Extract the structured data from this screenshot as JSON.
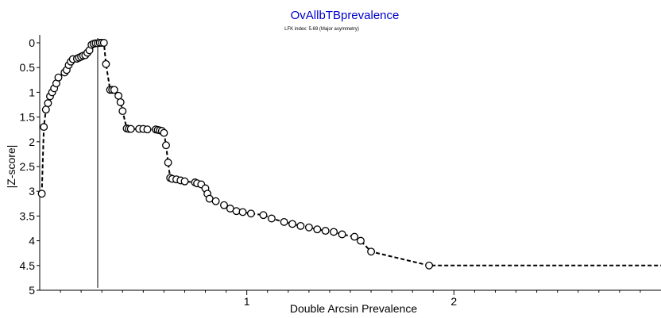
{
  "chart_data": {
    "type": "scatter",
    "title": "OvAllbTBprevalence",
    "subtitle": "LFK index: 5.69 (Major asymmetry)",
    "xlabel": "Double Arcsin Prevalence",
    "ylabel": "|Z-score|",
    "xlim": [
      0,
      3.0
    ],
    "ylim": [
      0,
      5
    ],
    "y_inverted": true,
    "x_ticks": [
      1,
      2
    ],
    "x_tick_labels": [
      "1",
      "2"
    ],
    "y_ticks": [
      0,
      0.5,
      1,
      1.5,
      2,
      2.5,
      3,
      3.5,
      4,
      4.5,
      5
    ],
    "y_tick_labels": [
      "0",
      "0.5",
      "1",
      "1.5",
      "2",
      "2.5",
      "3",
      "3.5",
      "4",
      "4.5",
      "5"
    ],
    "reference_line_x": 0.28,
    "colors": {
      "title": "#0000cc",
      "marker_fill": "#ffffff",
      "marker_stroke": "#000000",
      "line": "#000000"
    },
    "series": [
      {
        "x": [
          0.01,
          0.02,
          0.03,
          0.04,
          0.05,
          0.06,
          0.07,
          0.08,
          0.09,
          0.12,
          0.13,
          0.14,
          0.15,
          0.16,
          0.18,
          0.19,
          0.2,
          0.21,
          0.22,
          0.23,
          0.24,
          0.25,
          0.26,
          0.27,
          0.28,
          0.29,
          0.3,
          0.31,
          0.32,
          0.34,
          0.35,
          0.36,
          0.38,
          0.39,
          0.4,
          0.42,
          0.43,
          0.44,
          0.48,
          0.5,
          0.52,
          0.56,
          0.57,
          0.58,
          0.59,
          0.6,
          0.61,
          0.62,
          0.63,
          0.64,
          0.66,
          0.68,
          0.7,
          0.75,
          0.76,
          0.78,
          0.8,
          0.81,
          0.82,
          0.85,
          0.89,
          0.92,
          0.95,
          0.98,
          1.02,
          1.08,
          1.12,
          1.18,
          1.22,
          1.26,
          1.3,
          1.34,
          1.38,
          1.42,
          1.46,
          1.52,
          1.55,
          1.6,
          1.88,
          3.0
        ],
        "y": [
          3.05,
          1.7,
          1.35,
          1.22,
          1.08,
          1.0,
          0.92,
          0.82,
          0.7,
          0.6,
          0.55,
          0.45,
          0.38,
          0.33,
          0.32,
          0.3,
          0.28,
          0.26,
          0.25,
          0.2,
          0.15,
          0.04,
          0.02,
          0.01,
          0.01,
          0.0,
          0.0,
          0.0,
          0.43,
          0.95,
          0.95,
          0.95,
          1.07,
          1.2,
          1.38,
          1.73,
          1.74,
          1.74,
          1.74,
          1.74,
          1.75,
          1.75,
          1.76,
          1.77,
          1.78,
          1.82,
          2.07,
          2.42,
          2.73,
          2.75,
          2.76,
          2.78,
          2.8,
          2.82,
          2.84,
          2.86,
          2.94,
          3.05,
          3.15,
          3.2,
          3.28,
          3.35,
          3.4,
          3.42,
          3.45,
          3.48,
          3.55,
          3.62,
          3.66,
          3.7,
          3.73,
          3.77,
          3.8,
          3.82,
          3.87,
          3.92,
          4.0,
          4.22,
          4.5,
          4.5
        ]
      }
    ]
  }
}
